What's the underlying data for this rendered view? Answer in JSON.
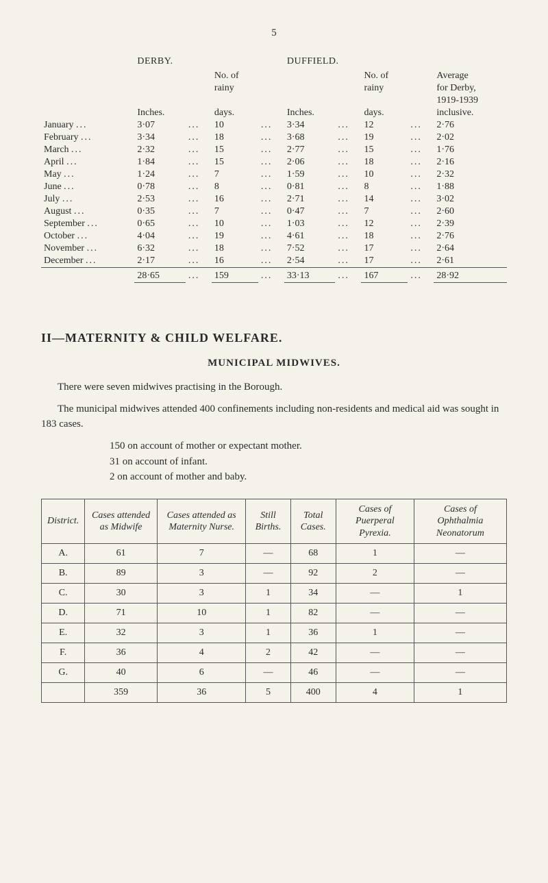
{
  "page_number": "5",
  "rainfall": {
    "left_location": "DERBY.",
    "right_location": "DUFFIELD.",
    "col_headers": {
      "inches": "Inches.",
      "rainy_days_top": "No. of",
      "rainy_days_mid": "rainy",
      "rainy_days_bot": "days.",
      "avg_top": "Average",
      "avg_mid": "for Derby,",
      "avg_years": "1919-1939",
      "avg_bot": "inclusive."
    },
    "rows": [
      {
        "month": "January",
        "d_in": "3·07",
        "d_days": "10",
        "f_in": "3·34",
        "f_days": "12",
        "avg": "2·76"
      },
      {
        "month": "February",
        "d_in": "3·34",
        "d_days": "18",
        "f_in": "3·68",
        "f_days": "19",
        "avg": "2·02"
      },
      {
        "month": "March",
        "d_in": "2·32",
        "d_days": "15",
        "f_in": "2·77",
        "f_days": "15",
        "avg": "1·76"
      },
      {
        "month": "April",
        "d_in": "1·84",
        "d_days": "15",
        "f_in": "2·06",
        "f_days": "18",
        "avg": "2·16"
      },
      {
        "month": "May",
        "d_in": "1·24",
        "d_days": "7",
        "f_in": "1·59",
        "f_days": "10",
        "avg": "2·32"
      },
      {
        "month": "June",
        "d_in": "0·78",
        "d_days": "8",
        "f_in": "0·81",
        "f_days": "8",
        "avg": "1·88"
      },
      {
        "month": "July",
        "d_in": "2·53",
        "d_days": "16",
        "f_in": "2·71",
        "f_days": "14",
        "avg": "3·02"
      },
      {
        "month": "August",
        "d_in": "0·35",
        "d_days": "7",
        "f_in": "0·47",
        "f_days": "7",
        "avg": "2·60"
      },
      {
        "month": "September",
        "d_in": "0·65",
        "d_days": "10",
        "f_in": "1·03",
        "f_days": "12",
        "avg": "2·39"
      },
      {
        "month": "October",
        "d_in": "4·04",
        "d_days": "19",
        "f_in": "4·61",
        "f_days": "18",
        "avg": "2·76"
      },
      {
        "month": "November",
        "d_in": "6·32",
        "d_days": "18",
        "f_in": "7·52",
        "f_days": "17",
        "avg": "2·64"
      },
      {
        "month": "December",
        "d_in": "2·17",
        "d_days": "16",
        "f_in": "2·54",
        "f_days": "17",
        "avg": "2·61"
      }
    ],
    "totals": {
      "d_in": "28·65",
      "d_days": "159",
      "f_in": "33·13",
      "f_days": "167",
      "avg": "28·92"
    }
  },
  "section2": {
    "heading": "II—MATERNITY & CHILD WELFARE.",
    "subheading": "MUNICIPAL MIDWIVES.",
    "para1": "There were seven midwives practising in the Borough.",
    "para2": "The municipal midwives attended 400 confinements including non-residents and medical aid was sought in 183 cases.",
    "list": [
      "150 on account of mother or expectant mother.",
      "31 on account of infant.",
      "2 on account of mother and baby."
    ]
  },
  "midwives_table": {
    "columns": [
      "District.",
      "Cases attended as Midwife",
      "Cases attended as Maternity Nurse.",
      "Still Births.",
      "Total Cases.",
      "Cases of Puerperal Pyrexia.",
      "Cases of Ophthalmia Neonatorum"
    ],
    "rows": [
      {
        "d": "A.",
        "c1": "61",
        "c2": "7",
        "c3": "—",
        "c4": "68",
        "c5": "1",
        "c6": "—"
      },
      {
        "d": "B.",
        "c1": "89",
        "c2": "3",
        "c3": "—",
        "c4": "92",
        "c5": "2",
        "c6": "—"
      },
      {
        "d": "C.",
        "c1": "30",
        "c2": "3",
        "c3": "1",
        "c4": "34",
        "c5": "—",
        "c6": "1"
      },
      {
        "d": "D.",
        "c1": "71",
        "c2": "10",
        "c3": "1",
        "c4": "82",
        "c5": "—",
        "c6": "—"
      },
      {
        "d": "E.",
        "c1": "32",
        "c2": "3",
        "c3": "1",
        "c4": "36",
        "c5": "1",
        "c6": "—"
      },
      {
        "d": "F.",
        "c1": "36",
        "c2": "4",
        "c3": "2",
        "c4": "42",
        "c5": "—",
        "c6": "—"
      },
      {
        "d": "G.",
        "c1": "40",
        "c2": "6",
        "c3": "—",
        "c4": "46",
        "c5": "—",
        "c6": "—"
      }
    ],
    "totals": {
      "d": "",
      "c1": "359",
      "c2": "36",
      "c3": "5",
      "c4": "400",
      "c5": "4",
      "c6": "1"
    }
  }
}
